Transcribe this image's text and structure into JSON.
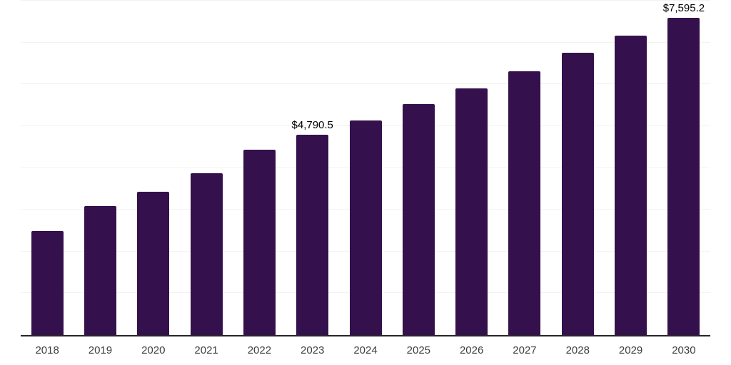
{
  "chart_data": {
    "type": "bar",
    "title": "",
    "categories": [
      "2018",
      "2019",
      "2020",
      "2021",
      "2022",
      "2023",
      "2024",
      "2025",
      "2026",
      "2027",
      "2028",
      "2029",
      "2030"
    ],
    "values": [
      2490,
      3090,
      3430,
      3870,
      4430,
      4790.5,
      5130,
      5530,
      5900,
      6310,
      6750,
      7160,
      7595.2
    ],
    "point_labels": [
      "",
      "",
      "",
      "",
      "",
      "$4,790.5",
      "",
      "",
      "",
      "",
      "",
      "",
      "$7,595.2"
    ],
    "xlabel": "",
    "ylabel": "",
    "ylim": [
      0,
      8000
    ],
    "gridline_step": 1000,
    "grid_on": true,
    "legend_position": "none"
  },
  "styles": {
    "bar_color": "#34114c",
    "axis_color": "#262626",
    "gridline_color": "#f2f2f2",
    "data_label_color": "#000000",
    "tick_label_color": "#3d3d3d",
    "background_color": "#ffffff"
  }
}
